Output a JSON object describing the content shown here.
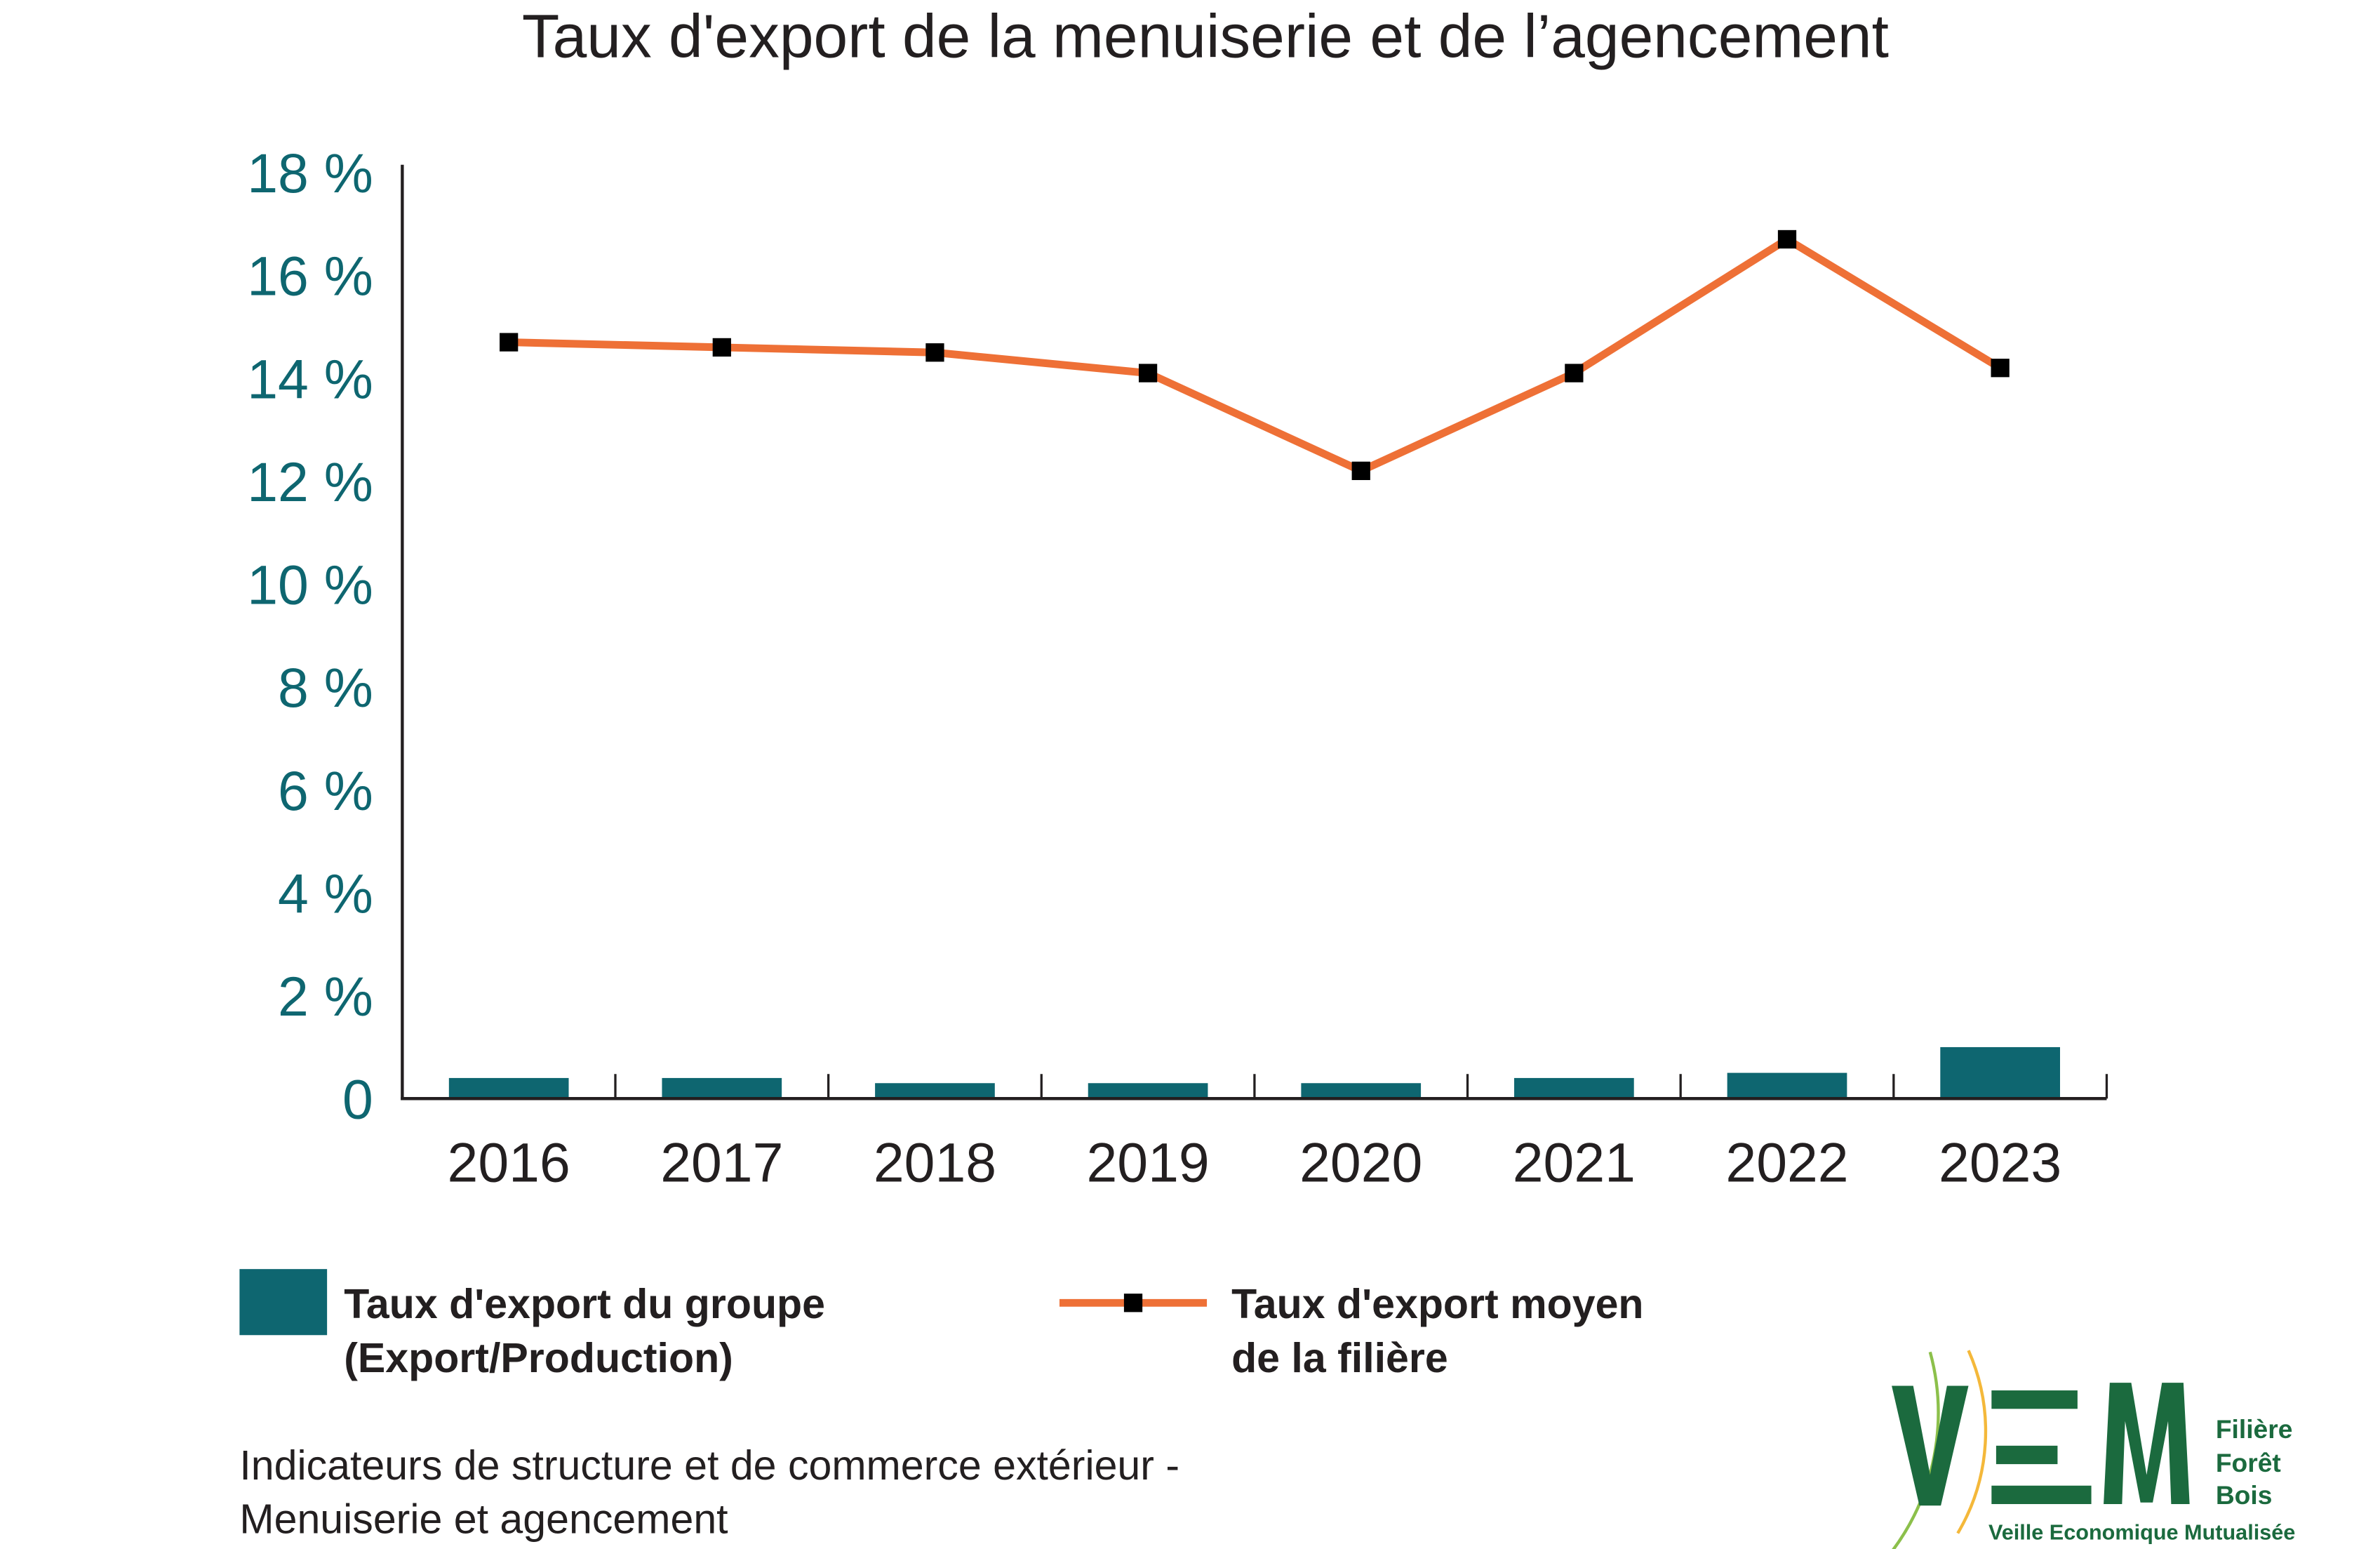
{
  "chart_data": {
    "type": "bar+line",
    "title": "Taux d'export de la menuiserie et de l’agencement",
    "categories": [
      "2016",
      "2017",
      "2018",
      "2019",
      "2020",
      "2021",
      "2022",
      "2023"
    ],
    "series": [
      {
        "name": "Taux d'export du groupe (Export/Production)",
        "legend_lines": [
          "Taux d'export du groupe",
          "(Export/Production)"
        ],
        "type": "bar",
        "color": "#0e6670",
        "values": [
          0.4,
          0.4,
          0.3,
          0.3,
          0.3,
          0.4,
          0.5,
          1.0
        ]
      },
      {
        "name": "Taux d'export moyen de la filière",
        "legend_lines": [
          "Taux d'export moyen",
          "de la filière"
        ],
        "type": "line",
        "color": "#ee7036",
        "marker_color": "#000000",
        "values": [
          14.7,
          14.6,
          14.5,
          14.1,
          12.2,
          14.1,
          16.7,
          14.2
        ]
      }
    ],
    "ylim": [
      0,
      18
    ],
    "yticks": [
      0,
      2,
      4,
      6,
      8,
      10,
      12,
      14,
      16,
      18
    ],
    "ytick_labels": [
      "0",
      "2 %",
      "4 %",
      "6 %",
      "8 %",
      "10 %",
      "12 %",
      "14 %",
      "16 %",
      "18 %"
    ],
    "xlabel": "",
    "ylabel": "",
    "grid": false,
    "legend_position": "bottom"
  },
  "source": [
    "Indicateurs de structure et de commerce extérieur -",
    "Menuiserie et agencement"
  ],
  "logo": {
    "letters": "VEM",
    "lines": [
      "Filière",
      "Forêt",
      "Bois"
    ],
    "tagline": "Veille Economique Mutualisée"
  }
}
